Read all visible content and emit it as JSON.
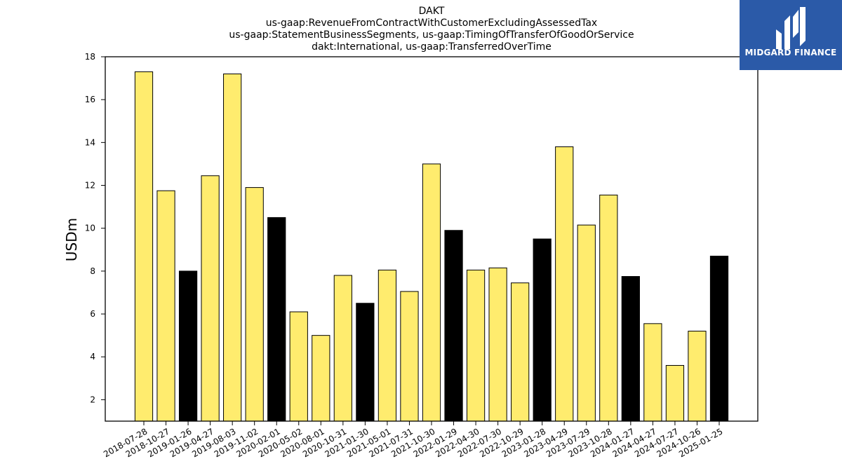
{
  "chart_data": {
    "type": "bar",
    "title_lines": [
      "DAKT",
      "us-gaap:RevenueFromContractWithCustomerExcludingAssessedTax",
      "us-gaap:StatementBusinessSegments, us-gaap:TimingOfTransferOfGoodOrService",
      "dakt:International, us-gaap:TransferredOverTime"
    ],
    "ylabel": "USDm",
    "xlabel": "",
    "ylim": [
      1,
      18
    ],
    "yticks": [
      2,
      4,
      6,
      8,
      10,
      12,
      14,
      16,
      18
    ],
    "categories": [
      "2018-07-28",
      "2018-10-27",
      "2019-01-26",
      "2019-04-27",
      "2019-08-03",
      "2019-11-02",
      "2020-02-01",
      "2020-05-02",
      "2020-08-01",
      "2020-10-31",
      "2021-01-30",
      "2021-05-01",
      "2021-07-31",
      "2021-10-30",
      "2022-01-29",
      "2022-04-30",
      "2022-07-30",
      "2022-10-29",
      "2023-01-28",
      "2023-04-29",
      "2023-07-29",
      "2023-10-28",
      "2024-01-27",
      "2024-04-27",
      "2024-07-27",
      "2024-10-26",
      "2025-01-25"
    ],
    "values": [
      17.3,
      11.75,
      8.0,
      12.45,
      17.2,
      11.9,
      10.5,
      6.1,
      5.0,
      7.8,
      6.5,
      8.05,
      7.05,
      13.0,
      9.9,
      8.05,
      8.15,
      7.45,
      9.5,
      13.8,
      10.15,
      11.55,
      7.75,
      5.55,
      3.6,
      5.2,
      8.7
    ],
    "bar_colors": [
      "#ffec6e",
      "#ffec6e",
      "#000000",
      "#ffec6e",
      "#ffec6e",
      "#ffec6e",
      "#000000",
      "#ffec6e",
      "#ffec6e",
      "#ffec6e",
      "#000000",
      "#ffec6e",
      "#ffec6e",
      "#ffec6e",
      "#000000",
      "#ffec6e",
      "#ffec6e",
      "#ffec6e",
      "#000000",
      "#ffec6e",
      "#ffec6e",
      "#ffec6e",
      "#000000",
      "#ffec6e",
      "#ffec6e",
      "#ffec6e",
      "#000000"
    ],
    "colors": {
      "highlight": "#ffec6e",
      "fiscal_year_end": "#000000",
      "edge": "#000000"
    },
    "grid": false
  },
  "logo": {
    "text": "MIDGARD FINANCE",
    "background": "#2b5aa8"
  }
}
